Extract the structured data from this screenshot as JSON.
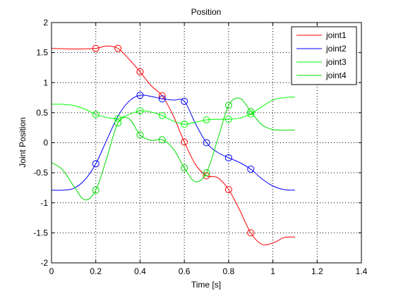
{
  "chart_data": {
    "type": "line",
    "title": "Position",
    "xlabel": "Time [s]",
    "ylabel": "Joint Position",
    "xlim": [
      0,
      1.4
    ],
    "ylim": [
      -2,
      2
    ],
    "xticks": [
      0,
      0.2,
      0.4,
      0.6,
      0.8,
      1,
      1.2,
      1.4
    ],
    "xtick_labels": [
      "0",
      "0.2",
      "0.4",
      "0.6",
      "0.8",
      "1",
      "1.2",
      "1.4"
    ],
    "yticks": [
      -2,
      -1.5,
      -1,
      -0.5,
      0,
      0.5,
      1,
      1.5,
      2
    ],
    "ytick_labels": [
      "-2",
      "-1.5",
      "-1",
      "-0.5",
      "0",
      "0.5",
      "1",
      "1.5",
      "2"
    ],
    "grid": true,
    "legend_position": "top-right",
    "series": [
      {
        "name": "joint1",
        "color": "#ff0000",
        "x": [
          0,
          0.1,
          0.2,
          0.25,
          0.3,
          0.35,
          0.4,
          0.45,
          0.5,
          0.55,
          0.6,
          0.65,
          0.7,
          0.75,
          0.8,
          0.85,
          0.9,
          0.95,
          1.0,
          1.05,
          1.1
        ],
        "y": [
          1.57,
          1.56,
          1.57,
          1.61,
          1.57,
          1.39,
          1.18,
          0.95,
          0.78,
          0.45,
          0.01,
          -0.36,
          -0.55,
          -0.58,
          -0.78,
          -1.12,
          -1.5,
          -1.69,
          -1.67,
          -1.58,
          -1.57
        ],
        "markers_x": [
          0.2,
          0.3,
          0.4,
          0.5,
          0.6,
          0.7,
          0.8,
          0.9
        ],
        "markers_y": [
          1.57,
          1.57,
          1.18,
          0.78,
          0.01,
          -0.55,
          -0.78,
          -1.5
        ]
      },
      {
        "name": "joint2",
        "color": "#0000ff",
        "x": [
          0,
          0.05,
          0.1,
          0.15,
          0.2,
          0.25,
          0.3,
          0.35,
          0.4,
          0.45,
          0.5,
          0.55,
          0.6,
          0.65,
          0.7,
          0.75,
          0.8,
          0.85,
          0.9,
          0.95,
          1.0,
          1.05,
          1.1
        ],
        "y": [
          -0.79,
          -0.79,
          -0.76,
          -0.62,
          -0.35,
          0.05,
          0.44,
          0.69,
          0.79,
          0.77,
          0.73,
          0.71,
          0.69,
          0.32,
          0.0,
          -0.16,
          -0.25,
          -0.33,
          -0.44,
          -0.6,
          -0.72,
          -0.78,
          -0.79
        ],
        "markers_x": [
          0.2,
          0.4,
          0.5,
          0.6,
          0.7,
          0.8,
          0.9
        ],
        "markers_y": [
          -0.35,
          0.79,
          0.73,
          0.69,
          0.0,
          -0.25,
          -0.44
        ]
      },
      {
        "name": "joint3",
        "color": "#00ff00",
        "x": [
          0,
          0.05,
          0.1,
          0.15,
          0.2,
          0.25,
          0.3,
          0.35,
          0.4,
          0.45,
          0.5,
          0.55,
          0.6,
          0.65,
          0.7,
          0.75,
          0.8,
          0.85,
          0.9,
          0.95,
          1.0,
          1.05,
          1.1
        ],
        "y": [
          0.64,
          0.64,
          0.62,
          0.56,
          0.47,
          0.42,
          0.4,
          0.47,
          0.53,
          0.51,
          0.45,
          0.36,
          0.31,
          0.34,
          0.38,
          0.39,
          0.39,
          0.41,
          0.48,
          0.6,
          0.71,
          0.75,
          0.76
        ],
        "markers_x": [
          0.2,
          0.3,
          0.4,
          0.5,
          0.6,
          0.7,
          0.8,
          0.9
        ],
        "markers_y": [
          0.47,
          0.4,
          0.53,
          0.45,
          0.31,
          0.38,
          0.39,
          0.48
        ]
      },
      {
        "name": "joint4",
        "color": "#00dd00",
        "x": [
          0,
          0.05,
          0.1,
          0.15,
          0.2,
          0.25,
          0.3,
          0.35,
          0.4,
          0.45,
          0.5,
          0.55,
          0.6,
          0.65,
          0.7,
          0.75,
          0.8,
          0.85,
          0.9,
          0.95,
          1.0,
          1.05,
          1.1
        ],
        "y": [
          -0.33,
          -0.45,
          -0.72,
          -0.95,
          -0.79,
          -0.25,
          0.33,
          0.4,
          0.13,
          0.04,
          0.05,
          -0.1,
          -0.42,
          -0.65,
          -0.5,
          0.05,
          0.62,
          0.74,
          0.52,
          0.3,
          0.22,
          0.21,
          0.21
        ],
        "markers_x": [
          0.2,
          0.3,
          0.4,
          0.5,
          0.6,
          0.7,
          0.8,
          0.9
        ],
        "markers_y": [
          -0.79,
          0.33,
          0.13,
          0.05,
          -0.42,
          -0.5,
          0.62,
          0.52
        ]
      }
    ]
  }
}
